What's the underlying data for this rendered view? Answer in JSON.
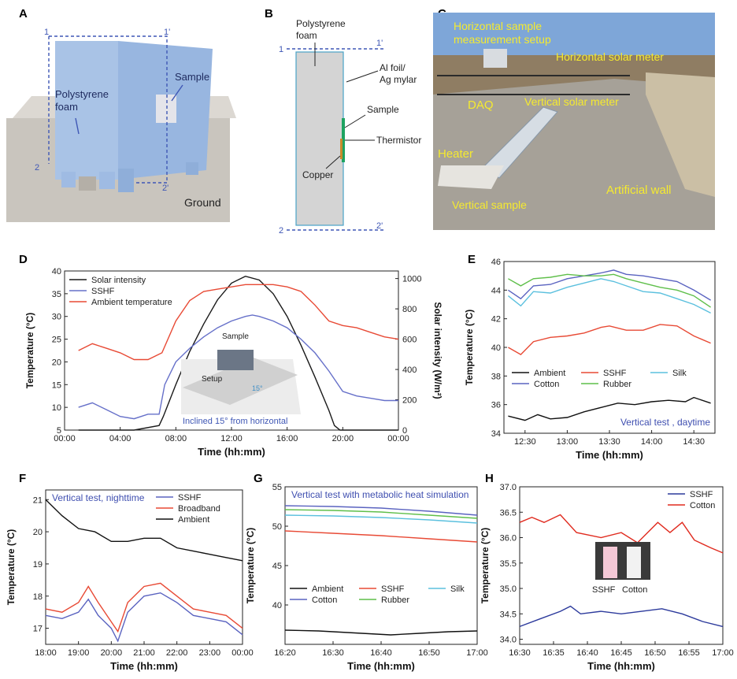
{
  "panel_letters": {
    "a": "A",
    "b": "B",
    "c": "C",
    "d": "D",
    "e": "E",
    "f": "F",
    "g": "G",
    "h": "H"
  },
  "panel_a": {
    "foam_label_1": "Polystyrene",
    "foam_label_2": "foam",
    "sample_label": "Sample",
    "ground_label": "Ground",
    "cut_1": "1",
    "cut_1p": "1'",
    "cut_2": "2",
    "cut_2p": "2'",
    "colors": {
      "box": "#a9c3e6",
      "box_side": "#8fb0dc",
      "ground": "#b9b5ae",
      "dash": "#3f57b5"
    }
  },
  "panel_b": {
    "foam_label_1": "Polystyrene",
    "foam_label_2": "foam",
    "foil_label_1": "Al foil/",
    "foil_label_2": "Ag mylar",
    "sample_label": "Sample",
    "thermistor_label": "Thermistor",
    "copper_label": "Copper",
    "cut_1": "1",
    "cut_1p": "1'",
    "cut_2": "2",
    "cut_2p": "2'",
    "colors": {
      "foam": "#d0d0d0",
      "foil": "#4aa3c7",
      "sample": "#1ea361",
      "copper": "#c98a2b"
    }
  },
  "panel_c": {
    "labels": {
      "horizontal_setup_1": "Horizontal sample",
      "horizontal_setup_2": "measurement setup",
      "horizontal_meter": "Horizontal solar meter",
      "daq": "DAQ",
      "vertical_meter": "Vertical solar meter",
      "heater": "Heater",
      "artificial_wall": "Artificial wall",
      "vertical_sample": "Vertical sample"
    },
    "colors": {
      "label": "#f5ea2f",
      "sky": "#7ea6d8",
      "floor": "#9d9890"
    }
  },
  "chart_data": [
    {
      "id": "D",
      "type": "line",
      "xlabel": "Time (hh:mm)",
      "ylabel": "Temperature (°C)",
      "y2label": "Solar intensity (W/m²)",
      "xlim": [
        0,
        24
      ],
      "ylim": [
        5,
        40
      ],
      "y2lim": [
        0,
        1050
      ],
      "x_ticks": [
        0,
        4,
        8,
        12,
        16,
        20,
        24
      ],
      "x_tick_labels": [
        "00:00",
        "04:00",
        "08:00",
        "12:00",
        "16:00",
        "20:00",
        "00:00"
      ],
      "y_ticks": [
        5,
        10,
        15,
        20,
        25,
        30,
        35,
        40
      ],
      "y2_ticks": [
        0,
        200,
        400,
        600,
        800,
        1000
      ],
      "legend": "top-left",
      "series": [
        {
          "name": "Solar intensity",
          "color": "#1a1a1a",
          "axis": "right",
          "x": [
            1,
            5,
            6.8,
            7.1,
            8,
            9,
            10,
            11,
            12,
            13,
            14,
            15,
            16,
            17,
            18,
            19,
            19.4,
            19.8,
            24
          ],
          "y": [
            0,
            0,
            30,
            90,
            300,
            520,
            700,
            860,
            970,
            1015,
            990,
            900,
            750,
            560,
            350,
            130,
            30,
            0,
            0
          ]
        },
        {
          "name": "SSHF",
          "color": "#6670c9",
          "axis": "left",
          "x": [
            1,
            2,
            3,
            4,
            5,
            6,
            6.8,
            7.2,
            8,
            9,
            10,
            11,
            12,
            13,
            13.5,
            14,
            15,
            16,
            17,
            18,
            19,
            20,
            21,
            22,
            23,
            24
          ],
          "y": [
            10,
            11,
            9.5,
            8,
            7.5,
            8.5,
            8.5,
            15,
            20,
            23,
            25.5,
            27.5,
            29,
            30,
            30.3,
            30,
            29,
            27.5,
            25,
            22,
            18,
            13.5,
            12.5,
            12,
            11.5,
            11.5
          ]
        },
        {
          "name": "Ambient temperature",
          "color": "#e84a35",
          "axis": "left",
          "x": [
            1,
            2,
            3,
            4,
            5,
            6,
            7,
            8,
            9,
            10,
            11,
            12,
            13,
            14,
            15,
            16,
            17,
            18,
            19,
            20,
            21,
            22,
            23,
            24
          ],
          "y": [
            22.5,
            24,
            23,
            22,
            20.5,
            20.5,
            22,
            29,
            33.5,
            35.5,
            36,
            36.5,
            37,
            37,
            37,
            36.5,
            35.5,
            32.5,
            29,
            28,
            27.5,
            26.5,
            25.5,
            25
          ]
        }
      ],
      "inset": {
        "sample": "Sample",
        "setup": "Setup",
        "angle": "15°",
        "caption": "Inclined 15° from horizontal"
      }
    },
    {
      "id": "E",
      "type": "line",
      "xlabel": "Time (hh:mm)",
      "ylabel": "Temperature (°C)",
      "xlim": [
        12.25,
        14.75
      ],
      "ylim": [
        34,
        46
      ],
      "x_ticks": [
        12.5,
        13,
        13.5,
        14,
        14.5
      ],
      "x_tick_labels": [
        "12:30",
        "13:00",
        "13:30",
        "14:00",
        "14:30"
      ],
      "y_ticks": [
        34,
        36,
        38,
        40,
        42,
        44,
        46
      ],
      "annotation": "Vertical test , daytime",
      "legend": "lower-left",
      "series": [
        {
          "name": "Ambient",
          "color": "#111111",
          "x": [
            12.3,
            12.5,
            12.65,
            12.8,
            13,
            13.2,
            13.4,
            13.6,
            13.8,
            14,
            14.2,
            14.4,
            14.5,
            14.7
          ],
          "y": [
            35.2,
            34.9,
            35.3,
            35,
            35.1,
            35.5,
            35.8,
            36.1,
            36,
            36.2,
            36.3,
            36.2,
            36.5,
            36.1
          ]
        },
        {
          "name": "SSHF",
          "color": "#e84a35",
          "x": [
            12.3,
            12.45,
            12.6,
            12.8,
            13,
            13.2,
            13.4,
            13.5,
            13.7,
            13.9,
            14.1,
            14.3,
            14.5,
            14.7
          ],
          "y": [
            40,
            39.5,
            40.4,
            40.7,
            40.8,
            41,
            41.4,
            41.5,
            41.2,
            41.2,
            41.6,
            41.5,
            40.8,
            40.3
          ]
        },
        {
          "name": "Silk",
          "color": "#5bc0de",
          "x": [
            12.3,
            12.45,
            12.6,
            12.8,
            13,
            13.2,
            13.4,
            13.55,
            13.7,
            13.9,
            14.1,
            14.3,
            14.5,
            14.7
          ],
          "y": [
            43.6,
            42.9,
            43.9,
            43.8,
            44.2,
            44.5,
            44.8,
            44.6,
            44.3,
            43.9,
            43.8,
            43.4,
            43,
            42.4
          ]
        },
        {
          "name": "Cotton",
          "color": "#5a63c0",
          "x": [
            12.3,
            12.45,
            12.6,
            12.8,
            13,
            13.2,
            13.4,
            13.55,
            13.7,
            13.9,
            14.1,
            14.3,
            14.5,
            14.7
          ],
          "y": [
            44,
            43.4,
            44.3,
            44.4,
            44.8,
            45,
            45.2,
            45.4,
            45.1,
            45,
            44.8,
            44.6,
            44,
            43.3
          ]
        },
        {
          "name": "Rubber",
          "color": "#5fbf4a",
          "x": [
            12.3,
            12.45,
            12.6,
            12.8,
            13,
            13.2,
            13.4,
            13.55,
            13.7,
            13.9,
            14.1,
            14.3,
            14.5,
            14.7
          ],
          "y": [
            44.8,
            44.3,
            44.8,
            44.9,
            45.1,
            45,
            45,
            45.1,
            44.8,
            44.5,
            44.2,
            44,
            43.6,
            42.8
          ]
        }
      ]
    },
    {
      "id": "F",
      "type": "line",
      "xlabel": "Time (hh:mm)",
      "ylabel": "Temperature (°C)",
      "xlim": [
        18,
        24
      ],
      "ylim": [
        16.5,
        21.3
      ],
      "x_ticks": [
        18,
        19,
        20,
        21,
        22,
        23,
        24
      ],
      "x_tick_labels": [
        "18:00",
        "19:00",
        "20:00",
        "21:00",
        "22:00",
        "23:00",
        "00:00"
      ],
      "y_ticks": [
        17,
        18,
        19,
        20,
        21
      ],
      "annotation": "Vertical test, nighttime",
      "legend": "top-right",
      "series": [
        {
          "name": "SSHF",
          "color": "#5a63c0",
          "x": [
            18,
            18.5,
            19,
            19.3,
            19.6,
            20,
            20.2,
            20.5,
            21,
            21.5,
            22,
            22.5,
            23,
            23.5,
            24
          ],
          "y": [
            17.4,
            17.3,
            17.5,
            17.9,
            17.4,
            17,
            16.6,
            17.5,
            18,
            18.1,
            17.8,
            17.4,
            17.3,
            17.2,
            16.8
          ]
        },
        {
          "name": "Broadband",
          "color": "#e84a35",
          "x": [
            18,
            18.5,
            19,
            19.3,
            19.6,
            20,
            20.2,
            20.5,
            21,
            21.5,
            22,
            22.5,
            23,
            23.5,
            24
          ],
          "y": [
            17.6,
            17.5,
            17.8,
            18.3,
            17.8,
            17.2,
            16.9,
            17.8,
            18.3,
            18.4,
            18,
            17.6,
            17.5,
            17.4,
            17
          ]
        },
        {
          "name": "Ambient",
          "color": "#111111",
          "x": [
            18,
            18.5,
            19,
            19.5,
            20,
            20.5,
            21,
            21.5,
            22,
            22.5,
            23,
            23.5,
            24
          ],
          "y": [
            21,
            20.5,
            20.1,
            20,
            19.7,
            19.7,
            19.8,
            19.8,
            19.5,
            19.4,
            19.3,
            19.2,
            19.1
          ]
        }
      ]
    },
    {
      "id": "G",
      "type": "line",
      "xlabel": "Time (hh:mm)",
      "ylabel": "Temperature (°C)",
      "xlim": [
        16.3333,
        17
      ],
      "ylim": [
        35,
        55
      ],
      "x_ticks": [
        16.3333,
        16.5,
        16.6667,
        16.8333,
        17
      ],
      "x_tick_labels": [
        "16:20",
        "16:30",
        "16:40",
        "16:50",
        "17:00"
      ],
      "y_ticks": [
        40,
        45,
        50,
        55
      ],
      "annotation": "Vertical test with metabolic heat simulation",
      "legend": "lower-left",
      "series": [
        {
          "name": "Ambient",
          "color": "#111111",
          "x": [
            16.3333,
            16.45,
            16.55,
            16.65,
            16.7,
            16.8,
            16.9,
            17
          ],
          "y": [
            36.8,
            36.7,
            36.5,
            36.3,
            36.2,
            36.4,
            36.6,
            36.7
          ]
        },
        {
          "name": "SSHF",
          "color": "#e84a35",
          "x": [
            16.3333,
            16.5,
            16.6667,
            16.8333,
            17
          ],
          "y": [
            49.4,
            49.1,
            48.8,
            48.4,
            48
          ]
        },
        {
          "name": "Silk",
          "color": "#5bc0de",
          "x": [
            16.3333,
            16.5,
            16.6667,
            16.8333,
            17
          ],
          "y": [
            51.4,
            51.3,
            51.1,
            50.8,
            50.4
          ]
        },
        {
          "name": "Cotton",
          "color": "#5a63c0",
          "x": [
            16.3333,
            16.5,
            16.6667,
            16.8333,
            17
          ],
          "y": [
            52.6,
            52.5,
            52.3,
            51.9,
            51.4
          ]
        },
        {
          "name": "Rubber",
          "color": "#5fbf4a",
          "x": [
            16.3333,
            16.5,
            16.6667,
            16.8333,
            17
          ],
          "y": [
            52.1,
            52,
            51.8,
            51.4,
            51
          ]
        }
      ]
    },
    {
      "id": "H",
      "type": "line",
      "xlabel": "Time (hh:mm)",
      "ylabel": "Temperature (°C)",
      "xlim": [
        16.5,
        17
      ],
      "ylim": [
        33.9,
        37
      ],
      "x_ticks": [
        16.5,
        16.5833,
        16.6667,
        16.75,
        16.8333,
        16.9167,
        17
      ],
      "x_tick_labels": [
        "16:30",
        "16:35",
        "16:40",
        "16:45",
        "16:50",
        "16:55",
        "17:00"
      ],
      "y_ticks": [
        34,
        34.5,
        35,
        35.5,
        36,
        36.5,
        37
      ],
      "y_tick_labels": [
        "34.0",
        "34.5",
        "35.0",
        "35.5",
        "36.0",
        "36.5",
        "37.0"
      ],
      "legend": "top-right",
      "series": [
        {
          "name": "SSHF",
          "color": "#2c3a9c",
          "x": [
            16.5,
            16.55,
            16.6,
            16.625,
            16.65,
            16.7,
            16.75,
            16.8,
            16.85,
            16.9,
            16.95,
            17
          ],
          "y": [
            34.25,
            34.4,
            34.55,
            34.65,
            34.5,
            34.55,
            34.5,
            34.55,
            34.6,
            34.5,
            34.35,
            34.25
          ]
        },
        {
          "name": "Cotton",
          "color": "#e02b1f",
          "x": [
            16.5,
            16.53,
            16.56,
            16.6,
            16.64,
            16.7,
            16.75,
            16.79,
            16.84,
            16.87,
            16.9,
            16.93,
            16.97,
            17
          ],
          "y": [
            36.3,
            36.4,
            36.3,
            36.45,
            36.1,
            36,
            36.1,
            35.9,
            36.3,
            36.1,
            36.3,
            35.95,
            35.8,
            35.7
          ]
        }
      ],
      "inset": {
        "label_left": "SSHF",
        "label_right": "Cotton"
      }
    }
  ]
}
